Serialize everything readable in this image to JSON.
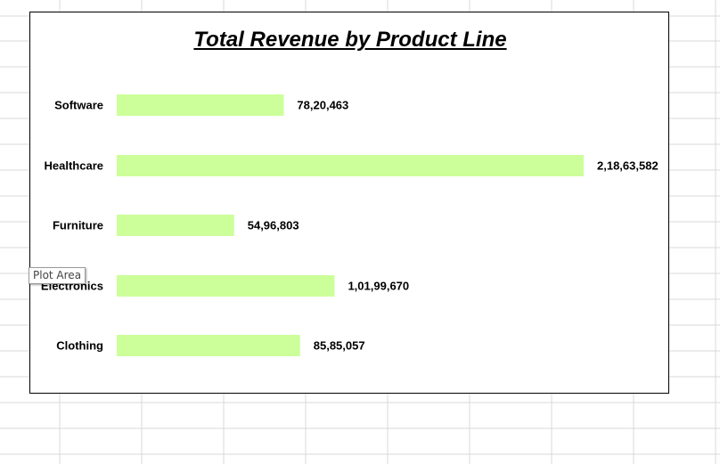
{
  "chart_data": {
    "type": "bar",
    "orientation": "horizontal",
    "title": "Total Revenue by Product Line",
    "categories": [
      "Software",
      "Healthcare",
      "Furniture",
      "Electronics",
      "Clothing"
    ],
    "values": [
      7820463,
      21863582,
      5496803,
      10199670,
      8585057
    ],
    "value_labels": [
      "78,20,463",
      "2,18,63,582",
      "54,96,803",
      "1,01,99,670",
      "85,85,057"
    ],
    "xlabel": "",
    "ylabel": "",
    "grid": false,
    "legend": "none",
    "bar_color": "#ccff99"
  },
  "tooltip": {
    "text": "Plot Area"
  },
  "colors": {
    "grid_line": "#d9d9d9",
    "text": "#000000"
  }
}
